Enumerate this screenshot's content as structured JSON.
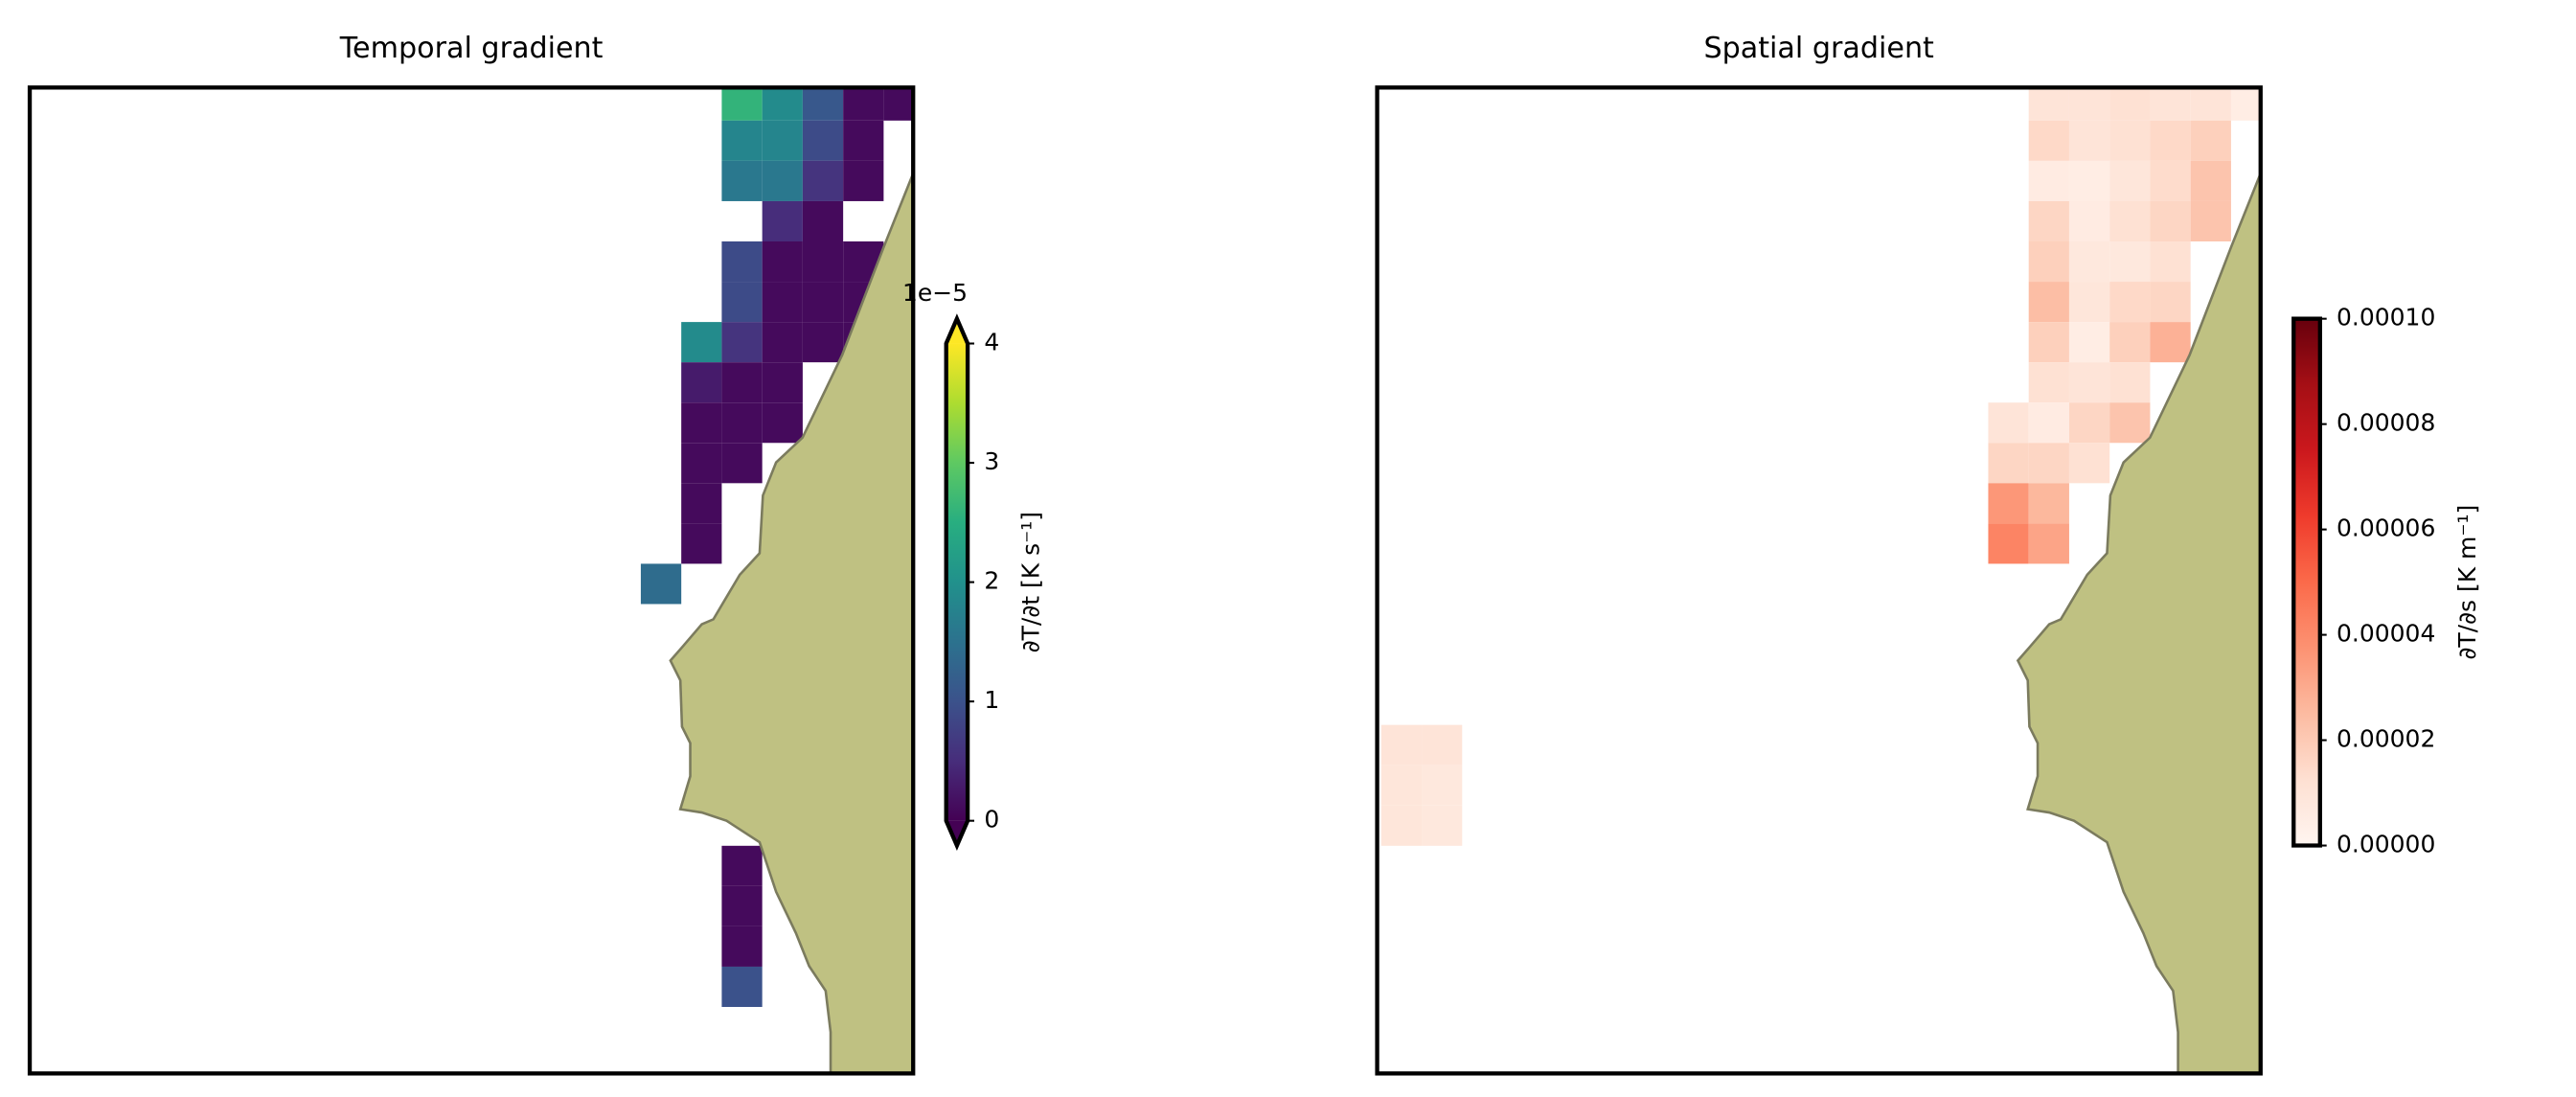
{
  "chart_data": [
    {
      "type": "heatmap",
      "title": "Temporal gradient",
      "xlim": [
        -17.1,
        4.73
      ],
      "ylim": [
        23.65,
        -0.82
      ],
      "x": [
        0,
        1,
        2,
        3,
        4,
        0,
        1,
        2,
        3,
        0,
        1,
        2,
        3,
        1,
        2,
        0,
        1,
        2,
        3,
        0,
        1,
        2,
        3,
        -1,
        0,
        1,
        2,
        3,
        -1,
        0,
        1,
        -1,
        0,
        1,
        -1,
        0,
        -1,
        -1,
        -2,
        0,
        0,
        0,
        0
      ],
      "y": [
        -1,
        -1,
        -1,
        -1,
        -1,
        0,
        0,
        0,
        0,
        1,
        1,
        1,
        1,
        2,
        2,
        3,
        3,
        3,
        3,
        4,
        4,
        4,
        4,
        5,
        5,
        5,
        5,
        5,
        6,
        6,
        6,
        7,
        7,
        7,
        8,
        8,
        9,
        10,
        11,
        18,
        19,
        20,
        21
      ],
      "values": [
        2.6,
        1.9,
        1.1,
        0.1,
        0.1,
        1.8,
        1.8,
        0.9,
        0.1,
        1.6,
        1.6,
        0.6,
        0.1,
        0.5,
        0.1,
        0.9,
        0.1,
        0.1,
        0.1,
        0.9,
        0.1,
        0.1,
        0.1,
        1.9,
        0.6,
        0.1,
        0.1,
        0.1,
        0.3,
        0.1,
        0.1,
        0.1,
        0.1,
        0.1,
        0.1,
        0.1,
        0.1,
        0.1,
        1.4,
        0.1,
        0.1,
        0.1,
        1.0
      ],
      "colormap": "viridis",
      "land_color": "#bfc182",
      "colorbar": {
        "label": "∂T/∂t [K s⁻¹]",
        "clim": [
          0,
          4
        ],
        "ticks": [
          0,
          1,
          2,
          3,
          4
        ],
        "offset_text": "1e−5",
        "extend": "both"
      }
    },
    {
      "type": "heatmap",
      "title": "Spatial gradient",
      "xlim": [
        -17.1,
        4.73
      ],
      "ylim": [
        23.65,
        -0.82
      ],
      "x": [
        -1,
        0,
        1,
        2,
        3,
        4,
        -1,
        0,
        1,
        2,
        3,
        -1,
        0,
        1,
        2,
        3,
        -1,
        0,
        1,
        2,
        3,
        -1,
        0,
        1,
        2,
        -1,
        0,
        1,
        2,
        -1,
        0,
        1,
        2,
        -1,
        0,
        1,
        -2,
        -1,
        0,
        1,
        -2,
        -1,
        0,
        -2,
        -1,
        -2,
        -1,
        -17,
        -16,
        -17,
        -16,
        -17,
        -16
      ],
      "y": [
        -1,
        -1,
        -1,
        -1,
        -1,
        -1,
        0,
        0,
        0,
        0,
        0,
        1,
        1,
        1,
        1,
        1,
        2,
        2,
        2,
        2,
        2,
        3,
        3,
        3,
        3,
        4,
        4,
        4,
        4,
        5,
        5,
        5,
        5,
        6,
        6,
        6,
        7,
        7,
        7,
        7,
        8,
        8,
        8,
        9,
        9,
        10,
        10,
        15,
        15,
        16,
        16,
        17,
        17
      ],
      "values": [
        1e-05,
        1e-05,
        1.2e-05,
        1e-05,
        1e-05,
        5e-06,
        1.5e-05,
        1e-05,
        1.2e-05,
        1.5e-05,
        1.8e-05,
        6e-06,
        5e-06,
        9e-06,
        1.4e-05,
        2.2e-05,
        1.6e-05,
        6e-06,
        1.2e-05,
        1.6e-05,
        2.2e-05,
        1.8e-05,
        8e-06,
        8e-06,
        1.2e-05,
        2.4e-05,
        9e-06,
        1.5e-05,
        1.6e-05,
        1.8e-05,
        5e-06,
        1.8e-05,
        2.8e-05,
        1.2e-05,
        1e-05,
        1.2e-05,
        1e-05,
        6e-06,
        1.6e-05,
        2.2e-05,
        1.6e-05,
        1.6e-05,
        1.2e-05,
        3.6e-05,
        2.6e-05,
        4.2e-05,
        3.2e-05,
        1e-05,
        1e-05,
        9e-06,
        8e-06,
        9e-06,
        8e-06
      ],
      "colormap": "reds",
      "land_color": "#bfc182",
      "colorbar": {
        "label": "∂T/∂s [K m⁻¹]",
        "clim": [
          0,
          0.0001
        ],
        "ticks": [
          {
            "value": 0,
            "label": "0.00000"
          },
          {
            "value": 2e-05,
            "label": "0.00002"
          },
          {
            "value": 4e-05,
            "label": "0.00004"
          },
          {
            "value": 6e-05,
            "label": "0.00006"
          },
          {
            "value": 8e-05,
            "label": "0.00008"
          },
          {
            "value": 0.0001,
            "label": "0.00010"
          }
        ]
      }
    }
  ]
}
